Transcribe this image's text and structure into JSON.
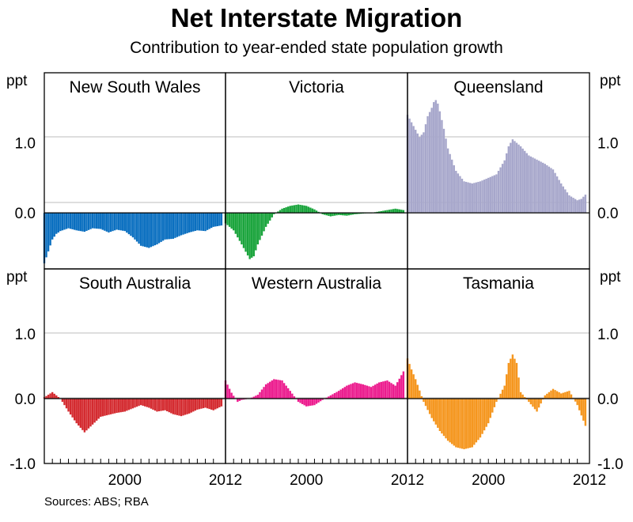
{
  "title": "Net Interstate Migration",
  "subtitle": "Contribution to year-ended state population growth",
  "source": "Sources: ABS; RBA",
  "chart_data": {
    "type": "bar",
    "title": "Net Interstate Migration",
    "subtitle": "Contribution to year-ended state population growth",
    "y_unit": "ppt",
    "x_ticks": [
      "2000",
      "2012"
    ],
    "x_range": [
      1990,
      2012.5
    ],
    "rows": [
      {
        "ylim": [
          -0.8,
          2.0
        ],
        "y_ticks": [
          "1.0",
          "0.0"
        ]
      },
      {
        "ylim": [
          -1.0,
          2.0
        ],
        "y_ticks": [
          "1.0",
          "0.0",
          "-1.0"
        ]
      }
    ],
    "panels": [
      {
        "name": "New South Wales",
        "row": 0,
        "color": "#0a6fc0",
        "points": [
          [
            1990,
            -0.72
          ],
          [
            1990.5,
            -0.55
          ],
          [
            1991,
            -0.38
          ],
          [
            1991.5,
            -0.3
          ],
          [
            1992,
            -0.26
          ],
          [
            1993,
            -0.22
          ],
          [
            1994,
            -0.25
          ],
          [
            1995,
            -0.27
          ],
          [
            1996,
            -0.22
          ],
          [
            1997,
            -0.23
          ],
          [
            1998,
            -0.28
          ],
          [
            1999,
            -0.24
          ],
          [
            2000,
            -0.26
          ],
          [
            2001,
            -0.35
          ],
          [
            2002,
            -0.47
          ],
          [
            2003,
            -0.5
          ],
          [
            2004,
            -0.45
          ],
          [
            2005,
            -0.38
          ],
          [
            2006,
            -0.37
          ],
          [
            2007,
            -0.32
          ],
          [
            2008,
            -0.28
          ],
          [
            2009,
            -0.25
          ],
          [
            2010,
            -0.26
          ],
          [
            2011,
            -0.2
          ],
          [
            2012,
            -0.18
          ]
        ]
      },
      {
        "name": "Victoria",
        "row": 0,
        "color": "#1aa43c",
        "points": [
          [
            1990,
            -0.15
          ],
          [
            1991,
            -0.25
          ],
          [
            1992,
            -0.45
          ],
          [
            1993,
            -0.66
          ],
          [
            1993.5,
            -0.62
          ],
          [
            1994,
            -0.45
          ],
          [
            1995,
            -0.2
          ],
          [
            1996,
            -0.02
          ],
          [
            1997,
            0.06
          ],
          [
            1998,
            0.1
          ],
          [
            1999,
            0.12
          ],
          [
            2000,
            0.1
          ],
          [
            2001,
            0.05
          ],
          [
            2002,
            -0.02
          ],
          [
            2003,
            -0.05
          ],
          [
            2004,
            -0.03
          ],
          [
            2005,
            -0.04
          ],
          [
            2006,
            -0.02
          ],
          [
            2007,
            -0.01
          ],
          [
            2008,
            0.0
          ],
          [
            2009,
            0.02
          ],
          [
            2010,
            0.04
          ],
          [
            2011,
            0.06
          ],
          [
            2012,
            0.04
          ]
        ]
      },
      {
        "name": "Queensland",
        "row": 0,
        "color": "#a7a7cb",
        "points": [
          [
            1990,
            1.4
          ],
          [
            1990.7,
            1.25
          ],
          [
            1991.5,
            1.08
          ],
          [
            1992,
            1.15
          ],
          [
            1992.5,
            1.38
          ],
          [
            1993,
            1.5
          ],
          [
            1993.4,
            1.63
          ],
          [
            1993.8,
            1.55
          ],
          [
            1994.5,
            1.2
          ],
          [
            1995,
            0.92
          ],
          [
            1996,
            0.6
          ],
          [
            1997,
            0.45
          ],
          [
            1998,
            0.42
          ],
          [
            1999,
            0.45
          ],
          [
            2000,
            0.5
          ],
          [
            2001,
            0.55
          ],
          [
            2002,
            0.75
          ],
          [
            2002.5,
            0.95
          ],
          [
            2003,
            1.05
          ],
          [
            2004,
            0.95
          ],
          [
            2005,
            0.82
          ],
          [
            2006,
            0.76
          ],
          [
            2007,
            0.7
          ],
          [
            2008,
            0.62
          ],
          [
            2009,
            0.42
          ],
          [
            2010,
            0.25
          ],
          [
            2011,
            0.18
          ],
          [
            2011.5,
            0.2
          ],
          [
            2012,
            0.26
          ]
        ]
      },
      {
        "name": "South Australia",
        "row": 1,
        "color": "#d42b30",
        "points": [
          [
            1990,
            0.02
          ],
          [
            1991,
            0.1
          ],
          [
            1992,
            0.0
          ],
          [
            1993,
            -0.2
          ],
          [
            1994,
            -0.38
          ],
          [
            1995,
            -0.52
          ],
          [
            1996,
            -0.4
          ],
          [
            1997,
            -0.28
          ],
          [
            1998,
            -0.25
          ],
          [
            1999,
            -0.22
          ],
          [
            2000,
            -0.2
          ],
          [
            2001,
            -0.15
          ],
          [
            2002,
            -0.1
          ],
          [
            2003,
            -0.14
          ],
          [
            2004,
            -0.2
          ],
          [
            2005,
            -0.18
          ],
          [
            2006,
            -0.24
          ],
          [
            2007,
            -0.27
          ],
          [
            2008,
            -0.23
          ],
          [
            2009,
            -0.17
          ],
          [
            2010,
            -0.14
          ],
          [
            2011,
            -0.18
          ],
          [
            2012,
            -0.12
          ]
        ]
      },
      {
        "name": "Western Australia",
        "row": 1,
        "color": "#ec1c8e",
        "points": [
          [
            1990,
            0.28
          ],
          [
            1990.7,
            0.1
          ],
          [
            1991.5,
            -0.05
          ],
          [
            1992,
            -0.02
          ],
          [
            1993,
            0.0
          ],
          [
            1994,
            0.06
          ],
          [
            1995,
            0.22
          ],
          [
            1996,
            0.3
          ],
          [
            1997,
            0.28
          ],
          [
            1998,
            0.12
          ],
          [
            1999,
            -0.05
          ],
          [
            2000,
            -0.12
          ],
          [
            2001,
            -0.1
          ],
          [
            2002,
            -0.02
          ],
          [
            2003,
            0.05
          ],
          [
            2004,
            0.12
          ],
          [
            2005,
            0.2
          ],
          [
            2006,
            0.25
          ],
          [
            2007,
            0.22
          ],
          [
            2008,
            0.18
          ],
          [
            2009,
            0.25
          ],
          [
            2010,
            0.28
          ],
          [
            2011,
            0.2
          ],
          [
            2011.7,
            0.35
          ],
          [
            2012,
            0.42
          ]
        ]
      },
      {
        "name": "Tasmania",
        "row": 1,
        "color": "#f5961e",
        "points": [
          [
            1990,
            0.62
          ],
          [
            1990.5,
            0.45
          ],
          [
            1991,
            0.3
          ],
          [
            1992,
            -0.05
          ],
          [
            1993,
            -0.3
          ],
          [
            1994,
            -0.5
          ],
          [
            1995,
            -0.65
          ],
          [
            1996,
            -0.75
          ],
          [
            1997,
            -0.78
          ],
          [
            1998,
            -0.75
          ],
          [
            1999,
            -0.6
          ],
          [
            2000,
            -0.38
          ],
          [
            2001,
            -0.05
          ],
          [
            2002,
            0.2
          ],
          [
            2002.5,
            0.55
          ],
          [
            2003,
            0.68
          ],
          [
            2003.5,
            0.55
          ],
          [
            2004,
            0.1
          ],
          [
            2005,
            -0.05
          ],
          [
            2006,
            -0.2
          ],
          [
            2007,
            0.05
          ],
          [
            2008,
            0.15
          ],
          [
            2009,
            0.08
          ],
          [
            2010,
            0.12
          ],
          [
            2011,
            -0.1
          ],
          [
            2012,
            -0.42
          ]
        ]
      }
    ]
  }
}
